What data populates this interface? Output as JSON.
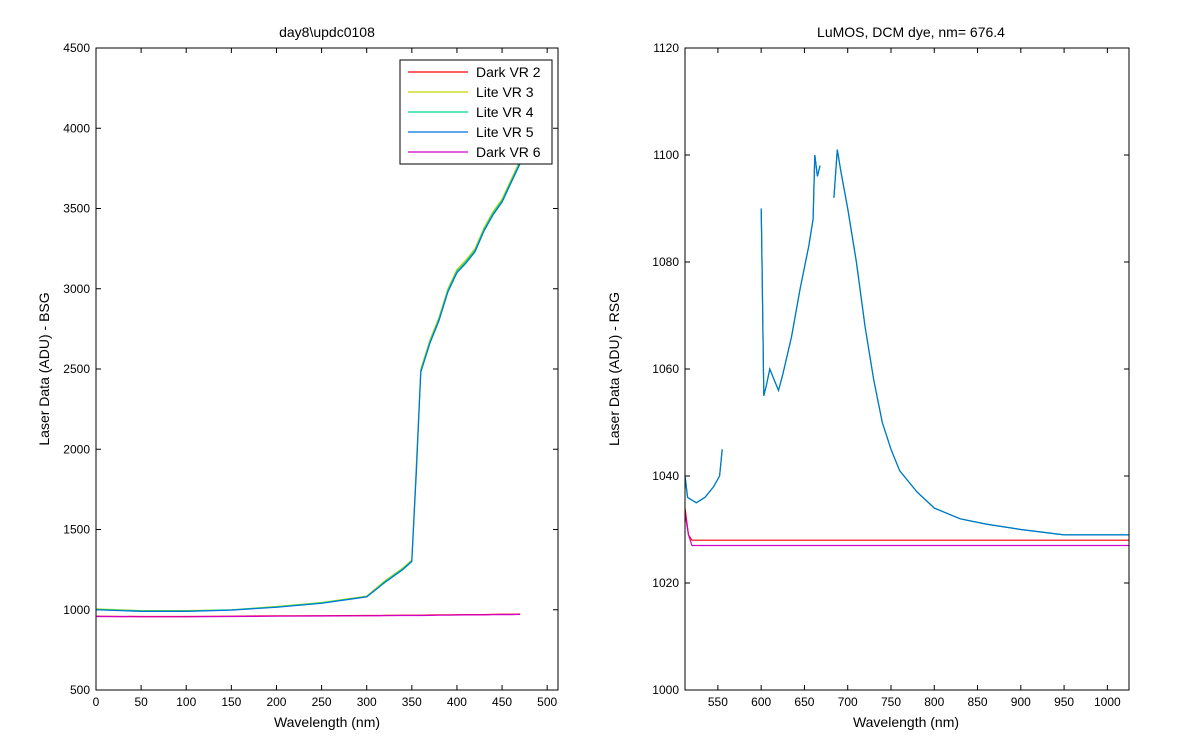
{
  "colors": {
    "background": "#ffffff",
    "axes": "#000000",
    "dark_vr_2": "#ff0000",
    "lite_vr_3": "#c8d400",
    "lite_vr_4": "#00d98a",
    "lite_vr_5": "#0072d9",
    "dark_vr_6": "#d000c8"
  },
  "chart_data": [
    {
      "type": "line",
      "title": "day8\\updc0108",
      "xlabel": "Wavelength (nm)",
      "ylabel": "Laser Data (ADU) - BSG",
      "xlim": [
        0,
        512
      ],
      "ylim": [
        500,
        4500
      ],
      "xticks": [
        0,
        50,
        100,
        150,
        200,
        250,
        300,
        350,
        400,
        450,
        500
      ],
      "yticks": [
        500,
        1000,
        1500,
        2000,
        2500,
        3000,
        3500,
        4000,
        4500
      ],
      "grid": false,
      "legend": "top-right",
      "x": [
        0,
        50,
        100,
        150,
        200,
        250,
        300,
        320,
        340,
        350,
        355,
        360,
        370,
        380,
        390,
        400,
        410,
        420,
        430,
        440,
        450,
        460,
        470
      ],
      "series": [
        {
          "name": "Dark VR 2",
          "color_key": "dark_vr_2",
          "values": [
            960,
            958,
            958,
            960,
            962,
            963,
            964,
            965,
            966,
            966,
            966,
            966,
            967,
            968,
            968,
            969,
            970,
            970,
            970,
            971,
            972,
            972,
            973
          ]
        },
        {
          "name": "Lite VR 3",
          "color_key": "lite_vr_3",
          "values": [
            1005,
            995,
            995,
            1000,
            1020,
            1045,
            1085,
            1180,
            1260,
            1310,
            1900,
            2500,
            2680,
            2820,
            3000,
            3120,
            3180,
            3250,
            3380,
            3480,
            3560,
            3680,
            3800
          ]
        },
        {
          "name": "Lite VR 4",
          "color_key": "lite_vr_4",
          "values": [
            1003,
            993,
            992,
            1000,
            1018,
            1043,
            1082,
            1175,
            1255,
            1305,
            1880,
            2490,
            2670,
            2810,
            2990,
            3110,
            3170,
            3240,
            3370,
            3470,
            3550,
            3670,
            3790
          ]
        },
        {
          "name": "Lite VR 5",
          "color_key": "lite_vr_5",
          "values": [
            1000,
            990,
            990,
            998,
            1015,
            1040,
            1080,
            1170,
            1250,
            1300,
            1850,
            2480,
            2660,
            2800,
            2980,
            3100,
            3160,
            3230,
            3360,
            3460,
            3540,
            3660,
            3780
          ]
        },
        {
          "name": "Dark VR 6",
          "color_key": "dark_vr_6",
          "values": [
            958,
            956,
            956,
            958,
            960,
            961,
            962,
            963,
            964,
            964,
            964,
            964,
            965,
            966,
            966,
            967,
            968,
            968,
            968,
            969,
            970,
            970,
            971
          ]
        }
      ]
    },
    {
      "type": "line",
      "title": "LuMOS, DCM dye, nm= 676.4",
      "xlabel": "Wavelength (nm)",
      "ylabel": "Laser Data (ADU) - RSG",
      "xlim": [
        512,
        1025
      ],
      "ylim": [
        1000,
        1120
      ],
      "xticks": [
        550,
        600,
        650,
        700,
        750,
        800,
        850,
        900,
        950,
        1000
      ],
      "yticks": [
        1000,
        1020,
        1040,
        1060,
        1080,
        1100,
        1120
      ],
      "grid": false,
      "series": [
        {
          "name": "Dark VR 2",
          "color_key": "dark_vr_2",
          "segments": [
            [
              [
                512,
                1034
              ],
              [
                516,
                1029
              ],
              [
                520,
                1028
              ],
              [
                600,
                1028
              ],
              [
                700,
                1028
              ],
              [
                800,
                1028
              ],
              [
                900,
                1028
              ],
              [
                1000,
                1028
              ],
              [
                1025,
                1028
              ]
            ]
          ]
        },
        {
          "name": "Lite VR 3",
          "color_key": "lite_vr_3",
          "segments": [
            [
              [
                512,
                1040
              ],
              [
                515,
                1036
              ],
              [
                525,
                1035
              ],
              [
                535,
                1036
              ],
              [
                545,
                1038
              ],
              [
                552,
                1040
              ],
              [
                555,
                1045
              ]
            ],
            [
              [
                600,
                1090
              ],
              [
                601,
                1080
              ],
              [
                603,
                1055
              ],
              [
                606,
                1057
              ],
              [
                610,
                1060
              ],
              [
                615,
                1058
              ],
              [
                620,
                1056
              ],
              [
                625,
                1059
              ],
              [
                635,
                1066
              ],
              [
                645,
                1075
              ],
              [
                655,
                1083
              ],
              [
                660,
                1088
              ],
              [
                662,
                1100
              ],
              [
                665,
                1096
              ],
              [
                668,
                1098
              ]
            ],
            [
              [
                684,
                1092
              ],
              [
                688,
                1101
              ],
              [
                692,
                1097
              ],
              [
                700,
                1090
              ],
              [
                710,
                1080
              ],
              [
                720,
                1068
              ],
              [
                730,
                1058
              ],
              [
                740,
                1050
              ],
              [
                750,
                1045
              ],
              [
                760,
                1041
              ],
              [
                780,
                1037
              ],
              [
                800,
                1034
              ],
              [
                830,
                1032
              ],
              [
                860,
                1031
              ],
              [
                900,
                1030
              ],
              [
                950,
                1029
              ],
              [
                1000,
                1029
              ],
              [
                1025,
                1029
              ]
            ]
          ]
        },
        {
          "name": "Lite VR 4",
          "color_key": "lite_vr_4",
          "segments": [
            [
              [
                512,
                1040
              ],
              [
                515,
                1036
              ],
              [
                525,
                1035
              ],
              [
                535,
                1036
              ],
              [
                545,
                1038
              ],
              [
                552,
                1040
              ],
              [
                555,
                1045
              ]
            ],
            [
              [
                600,
                1090
              ],
              [
                601,
                1080
              ],
              [
                603,
                1055
              ],
              [
                606,
                1057
              ],
              [
                610,
                1060
              ],
              [
                615,
                1058
              ],
              [
                620,
                1056
              ],
              [
                625,
                1059
              ],
              [
                635,
                1066
              ],
              [
                645,
                1075
              ],
              [
                655,
                1083
              ],
              [
                660,
                1088
              ],
              [
                662,
                1100
              ],
              [
                665,
                1096
              ],
              [
                668,
                1098
              ]
            ],
            [
              [
                684,
                1092
              ],
              [
                688,
                1101
              ],
              [
                692,
                1097
              ],
              [
                700,
                1090
              ],
              [
                710,
                1080
              ],
              [
                720,
                1068
              ],
              [
                730,
                1058
              ],
              [
                740,
                1050
              ],
              [
                750,
                1045
              ],
              [
                760,
                1041
              ],
              [
                780,
                1037
              ],
              [
                800,
                1034
              ],
              [
                830,
                1032
              ],
              [
                860,
                1031
              ],
              [
                900,
                1030
              ],
              [
                950,
                1029
              ],
              [
                1000,
                1029
              ],
              [
                1025,
                1029
              ]
            ]
          ]
        },
        {
          "name": "Lite VR 5",
          "color_key": "lite_vr_5",
          "segments": [
            [
              [
                512,
                1040
              ],
              [
                515,
                1036
              ],
              [
                525,
                1035
              ],
              [
                535,
                1036
              ],
              [
                545,
                1038
              ],
              [
                552,
                1040
              ],
              [
                555,
                1045
              ]
            ],
            [
              [
                600,
                1090
              ],
              [
                601,
                1080
              ],
              [
                603,
                1055
              ],
              [
                606,
                1057
              ],
              [
                610,
                1060
              ],
              [
                615,
                1058
              ],
              [
                620,
                1056
              ],
              [
                625,
                1059
              ],
              [
                635,
                1066
              ],
              [
                645,
                1075
              ],
              [
                655,
                1083
              ],
              [
                660,
                1088
              ],
              [
                662,
                1100
              ],
              [
                665,
                1096
              ],
              [
                668,
                1098
              ]
            ],
            [
              [
                684,
                1092
              ],
              [
                688,
                1101
              ],
              [
                692,
                1097
              ],
              [
                700,
                1090
              ],
              [
                710,
                1080
              ],
              [
                720,
                1068
              ],
              [
                730,
                1058
              ],
              [
                740,
                1050
              ],
              [
                750,
                1045
              ],
              [
                760,
                1041
              ],
              [
                780,
                1037
              ],
              [
                800,
                1034
              ],
              [
                830,
                1032
              ],
              [
                860,
                1031
              ],
              [
                900,
                1030
              ],
              [
                950,
                1029
              ],
              [
                1000,
                1029
              ],
              [
                1025,
                1029
              ]
            ]
          ]
        },
        {
          "name": "Dark VR 6",
          "color_key": "dark_vr_6",
          "segments": [
            [
              [
                512,
                1033
              ],
              [
                516,
                1029
              ],
              [
                520,
                1027
              ],
              [
                600,
                1027
              ],
              [
                700,
                1027
              ],
              [
                800,
                1027
              ],
              [
                900,
                1027
              ],
              [
                1000,
                1027
              ],
              [
                1025,
                1027
              ]
            ]
          ]
        }
      ]
    }
  ]
}
